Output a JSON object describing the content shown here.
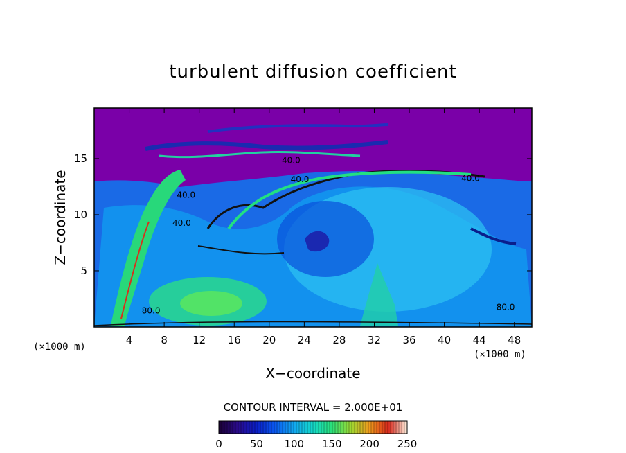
{
  "chart_data": {
    "type": "heatmap",
    "title": "turbulent diffusion coefficient",
    "xlabel": "X−coordinate",
    "ylabel": "Z−coordinate",
    "x_unit_left": "(×1000 m)",
    "x_unit_right": "(×1000 m)",
    "xlim": [
      0,
      50
    ],
    "ylim": [
      0,
      19.5
    ],
    "x_ticks": [
      4,
      8,
      12,
      16,
      20,
      24,
      28,
      32,
      36,
      40,
      44,
      48
    ],
    "x_tick_labels": [
      "4",
      "8",
      "12",
      "16",
      "20",
      "24",
      "28",
      "32",
      "36",
      "40",
      "44",
      "48"
    ],
    "y_ticks": [
      5,
      10,
      15
    ],
    "y_tick_labels": [
      "5",
      "10",
      "15"
    ],
    "contour_interval_text": "CONTOUR INTERVAL = 2.000E+01",
    "contour_interval": 20,
    "colorbar": {
      "range": [
        0,
        250
      ],
      "ticks": [
        0,
        50,
        100,
        150,
        200,
        250
      ],
      "tick_labels": [
        "0",
        "50",
        "100",
        "150",
        "200",
        "250"
      ],
      "colors": [
        "#1a0033",
        "#2a0a8a",
        "#0a1ec8",
        "#0a5af0",
        "#12a8f0",
        "#14d8c8",
        "#2ae07a",
        "#9cd832",
        "#f09a1c",
        "#d8281c",
        "#fff2e0"
      ]
    },
    "background_color": "#7a00a8",
    "contour_labels": [
      {
        "text": "40.0",
        "x": 22.5,
        "z": 14.6
      },
      {
        "text": "40.0",
        "x": 23.5,
        "z": 12.9
      },
      {
        "text": "40.0",
        "x": 10.5,
        "z": 11.5
      },
      {
        "text": "40.0",
        "x": 10.0,
        "z": 9.0
      },
      {
        "text": "40.0",
        "x": 43.0,
        "z": 13.0
      },
      {
        "text": "80.0",
        "x": 6.5,
        "z": 1.2
      },
      {
        "text": "80.0",
        "x": 47.0,
        "z": 1.5
      }
    ]
  }
}
